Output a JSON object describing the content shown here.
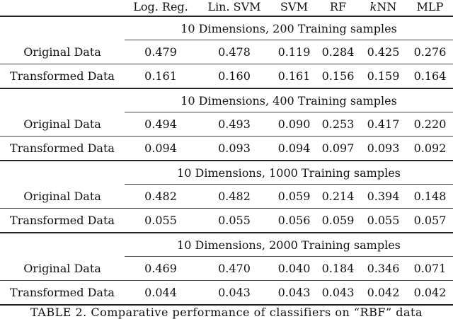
{
  "columns": [
    "",
    "Log. Reg.",
    "Lin. SVM",
    "SVM",
    "RF",
    "kNN",
    "MLP"
  ],
  "blocks": [
    {
      "title": "10 Dimensions, 200 Training samples",
      "rows": [
        {
          "label": "Original Data",
          "values": [
            "0.479",
            "0.478",
            "0.119",
            "0.284",
            "0.425",
            "0.276"
          ]
        },
        {
          "label": "Transformed Data",
          "values": [
            "0.161",
            "0.160",
            "0.161",
            "0.156",
            "0.159",
            "0.164"
          ]
        }
      ]
    },
    {
      "title": "10 Dimensions, 400 Training samples",
      "rows": [
        {
          "label": "Original Data",
          "values": [
            "0.494",
            "0.493",
            "0.090",
            "0.253",
            "0.417",
            "0.220"
          ]
        },
        {
          "label": "Transformed Data",
          "values": [
            "0.094",
            "0.093",
            "0.094",
            "0.097",
            "0.093",
            "0.092"
          ]
        }
      ]
    },
    {
      "title": "10 Dimensions, 1000 Training samples",
      "rows": [
        {
          "label": "Original Data",
          "values": [
            "0.482",
            "0.482",
            "0.059",
            "0.214",
            "0.394",
            "0.148"
          ]
        },
        {
          "label": "Transformed Data",
          "values": [
            "0.055",
            "0.055",
            "0.056",
            "0.059",
            "0.055",
            "0.057"
          ]
        }
      ]
    },
    {
      "title": "10 Dimensions, 2000 Training samples",
      "rows": [
        {
          "label": "Original Data",
          "values": [
            "0.469",
            "0.470",
            "0.040",
            "0.184",
            "0.346",
            "0.071"
          ]
        },
        {
          "label": "Transformed Data",
          "values": [
            "0.044",
            "0.043",
            "0.043",
            "0.043",
            "0.042",
            "0.042"
          ]
        }
      ]
    }
  ],
  "caption": "TABLE 2.  Comparative performance of classifiers on “RBF” data"
}
